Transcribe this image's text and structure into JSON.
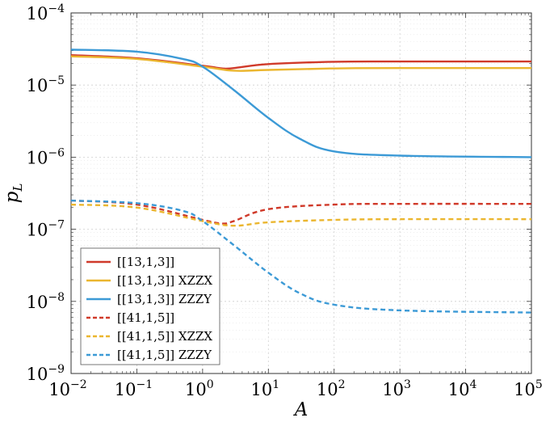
{
  "chart_data": {
    "type": "line",
    "xscale": "log",
    "yscale": "log",
    "xlabel": "A",
    "ylabel": "p",
    "ylabel_sub": "L",
    "xlim": [
      0.01,
      100000
    ],
    "ylim": [
      1e-09,
      0.0001
    ],
    "grid": true,
    "legend_position": "bottom-left",
    "x_ticks": [
      {
        "base": "10",
        "exp": "−2"
      },
      {
        "base": "10",
        "exp": "−1"
      },
      {
        "base": "10",
        "exp": "0"
      },
      {
        "base": "10",
        "exp": "1"
      },
      {
        "base": "10",
        "exp": "2"
      },
      {
        "base": "10",
        "exp": "3"
      },
      {
        "base": "10",
        "exp": "4"
      },
      {
        "base": "10",
        "exp": "5"
      }
    ],
    "y_ticks": [
      {
        "base": "10",
        "exp": "−9"
      },
      {
        "base": "10",
        "exp": "−8"
      },
      {
        "base": "10",
        "exp": "−7"
      },
      {
        "base": "10",
        "exp": "−6"
      },
      {
        "base": "10",
        "exp": "−5"
      },
      {
        "base": "10",
        "exp": "−4"
      }
    ],
    "series": [
      {
        "name": "[[13,1,3]]",
        "color": "#d03a2a",
        "dash": "solid",
        "x": [
          0.01,
          0.1,
          1,
          2,
          3,
          10,
          100,
          1000,
          100000
        ],
        "y": [
          2.6e-05,
          2.35e-05,
          1.85e-05,
          1.7e-05,
          1.72e-05,
          1.95e-05,
          2.1e-05,
          2.12e-05,
          2.12e-05
        ]
      },
      {
        "name": "[[13,1,3]] XZZX",
        "color": "#ebb62f",
        "dash": "solid",
        "x": [
          0.01,
          0.1,
          1,
          3,
          10,
          100,
          1000,
          100000
        ],
        "y": [
          2.5e-05,
          2.3e-05,
          1.8e-05,
          1.58e-05,
          1.62e-05,
          1.7e-05,
          1.72e-05,
          1.72e-05
        ]
      },
      {
        "name": "[[13,1,3]] ZZZY",
        "color": "#3c9ad6",
        "dash": "solid",
        "x": [
          0.01,
          0.1,
          0.5,
          1,
          3,
          10,
          30,
          100,
          1000,
          100000
        ],
        "y": [
          3.1e-05,
          2.9e-05,
          2.3e-05,
          1.8e-05,
          8.5e-06,
          3.5e-06,
          1.8e-06,
          1.2e-06,
          1.05e-06,
          1e-06
        ]
      },
      {
        "name": "[[41,1,5]]",
        "color": "#d03a2a",
        "dash": "dashed",
        "x": [
          0.01,
          0.1,
          1,
          2,
          3,
          10,
          100,
          1000,
          100000
        ],
        "y": [
          2.5e-07,
          2.2e-07,
          1.35e-07,
          1.2e-07,
          1.3e-07,
          1.9e-07,
          2.2e-07,
          2.25e-07,
          2.25e-07
        ]
      },
      {
        "name": "[[41,1,5]] XZZX",
        "color": "#ebb62f",
        "dash": "dashed",
        "x": [
          0.01,
          0.1,
          1,
          3,
          10,
          100,
          1000,
          100000
        ],
        "y": [
          2.2e-07,
          2e-07,
          1.3e-07,
          1.12e-07,
          1.25e-07,
          1.35e-07,
          1.38e-07,
          1.38e-07
        ]
      },
      {
        "name": "[[41,1,5]] ZZZY",
        "color": "#3c9ad6",
        "dash": "dashed",
        "x": [
          0.01,
          0.1,
          0.5,
          1,
          3,
          10,
          30,
          100,
          1000,
          100000
        ],
        "y": [
          2.5e-07,
          2.3e-07,
          1.8e-07,
          1.3e-07,
          6e-08,
          2.5e-08,
          1.3e-08,
          9e-09,
          7.5e-09,
          7e-09
        ]
      }
    ]
  }
}
